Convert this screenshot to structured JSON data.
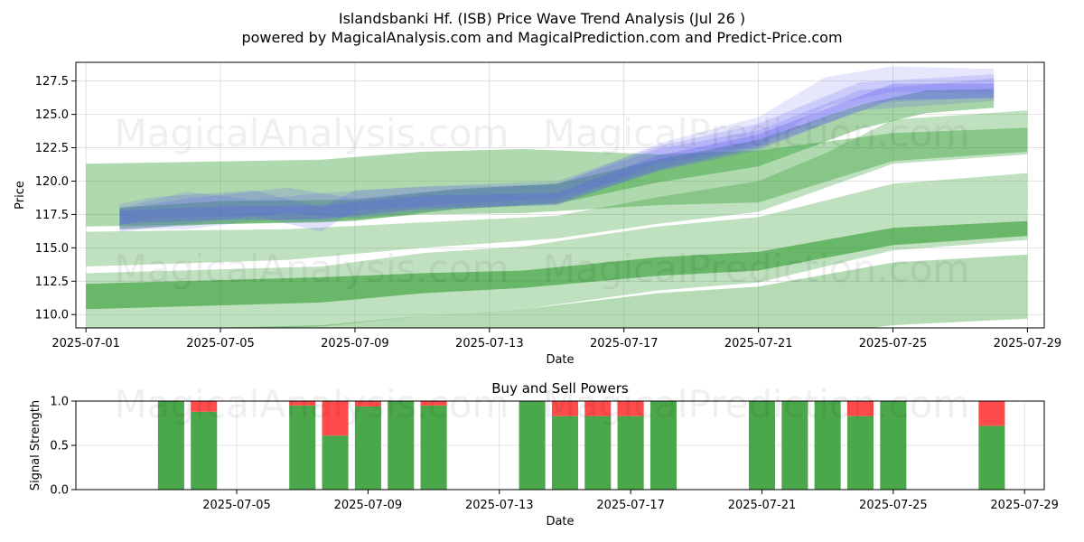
{
  "titles": {
    "line1": "Islandsbanki Hf. (ISB) Price Wave Trend Analysis (Jul 26 )",
    "line2": "powered by MagicalAnalysis.com and MagicalPrediction.com and Predict-Price.com"
  },
  "watermark": {
    "left": "MagicalAnalysis.com",
    "right": "MagicalPrediction.com"
  },
  "colors": {
    "green_band": "#2e9b2e",
    "blue_band": "#5a5af0",
    "buy": "#4aa84a",
    "sell": "#ff4b4b"
  },
  "chart_data": [
    {
      "type": "area",
      "title": "",
      "xlabel": "Date",
      "ylabel": "Price",
      "xlim": [
        "2025-06-30.7",
        "2025-07-29.5"
      ],
      "ylim": [
        109.0,
        128.9
      ],
      "x_ticks": [
        "2025-07-01",
        "2025-07-05",
        "2025-07-09",
        "2025-07-13",
        "2025-07-17",
        "2025-07-21",
        "2025-07-25",
        "2025-07-29"
      ],
      "y_ticks": [
        "110.0",
        "112.5",
        "115.0",
        "117.5",
        "120.0",
        "122.5",
        "125.0",
        "127.5"
      ],
      "grid": true,
      "bands": [
        {
          "color": "green",
          "opacity": 0.38,
          "x": [
            "2025-07-01",
            "2025-07-08",
            "2025-07-11",
            "2025-07-14",
            "2025-07-18",
            "2025-07-21",
            "2025-07-25",
            "2025-07-29"
          ],
          "upper": [
            121.3,
            121.6,
            122.2,
            122.4,
            122.0,
            122.3,
            123.6,
            124.0
          ],
          "lower": [
            116.6,
            116.9,
            117.5,
            117.6,
            118.2,
            118.4,
            121.5,
            122.2
          ]
        },
        {
          "color": "green",
          "opacity": 0.3,
          "x": [
            "2025-07-01",
            "2025-07-08",
            "2025-07-11",
            "2025-07-14",
            "2025-07-18",
            "2025-07-21",
            "2025-07-25",
            "2025-07-29"
          ],
          "upper": [
            113.1,
            113.6,
            114.6,
            115.1,
            116.6,
            117.3,
            119.8,
            120.6
          ],
          "lower": [
            108.5,
            109.1,
            109.9,
            110.4,
            111.8,
            112.4,
            114.8,
            115.6
          ]
        },
        {
          "color": "green",
          "opacity": 0.36,
          "x": [
            "2025-07-01",
            "2025-07-08",
            "2025-07-11",
            "2025-07-14",
            "2025-07-18",
            "2025-07-21",
            "2025-07-25",
            "2025-07-29"
          ],
          "upper": [
            108.8,
            109.2,
            109.9,
            110.4,
            111.6,
            112.1,
            113.9,
            114.5
          ],
          "lower": [
            104.2,
            104.8,
            105.4,
            106.0,
            107.2,
            107.9,
            109.2,
            109.7
          ]
        },
        {
          "color": "green",
          "opacity": 0.6,
          "x": [
            "2025-07-01",
            "2025-07-08",
            "2025-07-11",
            "2025-07-14",
            "2025-07-18",
            "2025-07-21",
            "2025-07-25",
            "2025-07-29"
          ],
          "upper": [
            112.3,
            112.8,
            113.1,
            113.3,
            114.3,
            114.7,
            116.5,
            117.0
          ],
          "lower": [
            110.4,
            110.9,
            111.6,
            112.0,
            112.9,
            113.3,
            115.2,
            115.9
          ]
        },
        {
          "color": "green",
          "opacity": 0.3,
          "x": [
            "2025-07-01",
            "2025-07-07",
            "2025-07-11",
            "2025-07-15",
            "2025-07-18",
            "2025-07-21",
            "2025-07-23",
            "2025-07-25",
            "2025-07-29"
          ],
          "upper": [
            116.2,
            116.4,
            116.9,
            117.4,
            118.8,
            120.0,
            122.1,
            124.6,
            125.3
          ],
          "lower": [
            113.6,
            114.1,
            115.0,
            115.7,
            116.8,
            117.7,
            119.5,
            121.3,
            122.0
          ]
        },
        {
          "color": "green",
          "opacity": 0.42,
          "x": [
            "2025-07-02",
            "2025-07-05",
            "2025-07-09",
            "2025-07-12",
            "2025-07-15",
            "2025-07-18",
            "2025-07-21",
            "2025-07-24",
            "2025-07-26",
            "2025-07-28"
          ],
          "upper": [
            118.0,
            118.5,
            118.6,
            119.4,
            119.8,
            121.6,
            123.1,
            125.7,
            126.8,
            126.9
          ],
          "lower": [
            116.4,
            116.8,
            117.0,
            117.9,
            118.3,
            119.9,
            121.1,
            123.9,
            125.1,
            125.5
          ]
        },
        {
          "color": "blue",
          "opacity": 0.15,
          "x": [
            "2025-07-02",
            "2025-07-04",
            "2025-07-06",
            "2025-07-08",
            "2025-07-11",
            "2025-07-15",
            "2025-07-18",
            "2025-07-21",
            "2025-07-23",
            "2025-07-25",
            "2025-07-28"
          ],
          "upper": [
            118.0,
            119.2,
            118.6,
            119.1,
            119.6,
            119.7,
            122.8,
            124.8,
            127.8,
            128.6,
            128.4
          ],
          "lower": [
            116.4,
            116.4,
            117.0,
            117.2,
            118.0,
            118.3,
            121.3,
            122.7,
            125.6,
            126.7,
            126.6
          ]
        },
        {
          "color": "blue",
          "opacity": 0.18,
          "x": [
            "2025-07-02",
            "2025-07-03",
            "2025-07-06",
            "2025-07-08",
            "2025-07-09",
            "2025-07-12",
            "2025-07-15",
            "2025-07-18",
            "2025-07-21",
            "2025-07-24",
            "2025-07-28"
          ],
          "upper": [
            118.3,
            118.8,
            119.3,
            118.0,
            119.3,
            119.7,
            120.0,
            122.6,
            124.3,
            127.4,
            128.0
          ],
          "lower": [
            116.7,
            117.2,
            117.4,
            116.2,
            117.8,
            118.3,
            118.7,
            120.9,
            122.7,
            125.8,
            126.3
          ]
        },
        {
          "color": "blue",
          "opacity": 0.2,
          "x": [
            "2025-07-02",
            "2025-07-04",
            "2025-07-07",
            "2025-07-09",
            "2025-07-12",
            "2025-07-15",
            "2025-07-18",
            "2025-07-21",
            "2025-07-24",
            "2025-07-28"
          ],
          "upper": [
            117.9,
            118.7,
            119.5,
            118.7,
            119.4,
            119.8,
            122.4,
            123.8,
            126.8,
            127.7
          ],
          "lower": [
            116.2,
            116.8,
            117.6,
            117.2,
            117.9,
            118.4,
            120.7,
            122.3,
            125.3,
            126.0
          ]
        },
        {
          "color": "blue",
          "opacity": 0.28,
          "x": [
            "2025-07-02",
            "2025-07-05",
            "2025-07-08",
            "2025-07-11",
            "2025-07-15",
            "2025-07-18",
            "2025-07-21",
            "2025-07-25",
            "2025-07-28"
          ],
          "upper": [
            117.8,
            118.1,
            118.2,
            118.9,
            119.1,
            121.9,
            123.5,
            127.3,
            127.3
          ],
          "lower": [
            116.8,
            117.1,
            117.1,
            117.9,
            118.2,
            120.8,
            122.5,
            126.1,
            126.2
          ]
        }
      ]
    },
    {
      "type": "bar",
      "title": "Buy and Sell Powers",
      "xlabel": "Date",
      "ylabel": "Signal Strength",
      "ylim": [
        0.0,
        1.0
      ],
      "y_ticks": [
        "0.0",
        "0.5",
        "1.0"
      ],
      "x_ticks": [
        "2025-07-05",
        "2025-07-09",
        "2025-07-13",
        "2025-07-17",
        "2025-07-21",
        "2025-07-25",
        "2025-07-29"
      ],
      "xlim": [
        "2025-06-30.1",
        "2025-07-29.6"
      ],
      "grid": true,
      "x": [
        "2025-07-03",
        "2025-07-04",
        "2025-07-07",
        "2025-07-08",
        "2025-07-09",
        "2025-07-10",
        "2025-07-11",
        "2025-07-14",
        "2025-07-15",
        "2025-07-16",
        "2025-07-17",
        "2025-07-18",
        "2025-07-21",
        "2025-07-22",
        "2025-07-23",
        "2025-07-24",
        "2025-07-25",
        "2025-07-28"
      ],
      "series": [
        {
          "name": "buy",
          "values": [
            1.0,
            0.88,
            0.95,
            0.61,
            0.94,
            1.0,
            0.95,
            1.0,
            0.83,
            0.83,
            0.83,
            1.0,
            1.0,
            1.0,
            1.0,
            0.83,
            1.0,
            0.72
          ]
        },
        {
          "name": "sell",
          "values": [
            0.0,
            0.12,
            0.05,
            0.39,
            0.06,
            0.0,
            0.05,
            0.0,
            0.17,
            0.17,
            0.17,
            0.0,
            0.0,
            0.0,
            0.0,
            0.17,
            0.0,
            0.28
          ]
        }
      ]
    }
  ]
}
